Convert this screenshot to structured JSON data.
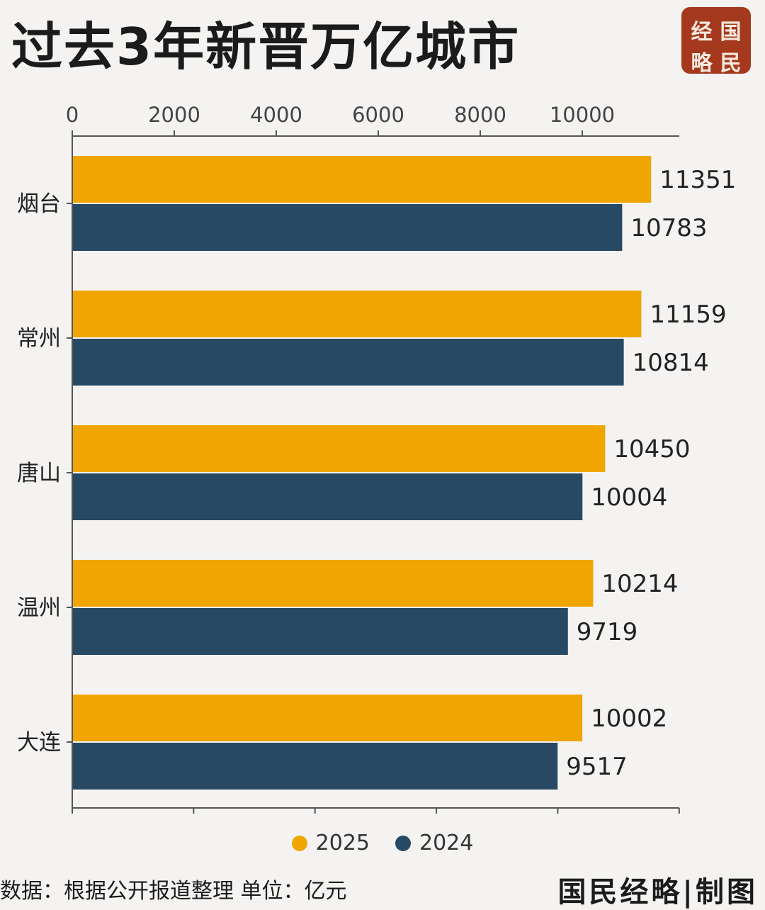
{
  "header": {
    "title": "过去3年新晋万亿城市"
  },
  "seal": [
    "经",
    "国",
    "略",
    "民"
  ],
  "chart_data": {
    "type": "bar",
    "orientation": "horizontal",
    "categories": [
      "烟台",
      "常州",
      "唐山",
      "温州",
      "大连"
    ],
    "series": [
      {
        "name": "2025",
        "color": "#f0a500",
        "values": [
          11351,
          11159,
          10450,
          10214,
          10002
        ]
      },
      {
        "name": "2024",
        "color": "#284963",
        "values": [
          10783,
          10814,
          10004,
          9719,
          9517
        ]
      }
    ],
    "xticks": [
      "0",
      "2000",
      "4000",
      "6000",
      "8000",
      "10000"
    ],
    "xlim": [
      0,
      12000
    ],
    "axis_position": "top",
    "legend_position": "bottom-center",
    "grid": false
  },
  "footer": {
    "source": "数据：根据公开报道整理  单位：亿元",
    "brand": "国民经略|制图"
  }
}
